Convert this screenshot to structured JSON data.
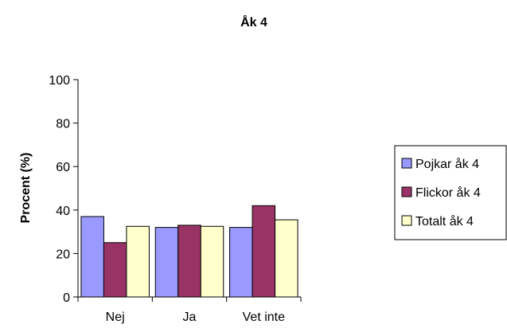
{
  "chart_data": {
    "type": "bar",
    "title": "Åk 4",
    "xlabel": "",
    "ylabel": "Procent (%)",
    "ylim": [
      0,
      100
    ],
    "yticks": [
      0,
      20,
      40,
      60,
      80,
      100
    ],
    "categories": [
      "Nej",
      "Ja",
      "Vet inte"
    ],
    "series": [
      {
        "name": "Pojkar åk 4",
        "values": [
          37,
          32,
          32
        ],
        "color": "#9999ff"
      },
      {
        "name": "Flickor åk 4",
        "values": [
          25,
          33,
          42
        ],
        "color": "#993366"
      },
      {
        "name": "Totalt åk 4",
        "values": [
          32.5,
          32.5,
          35.5
        ],
        "color": "#ffffcc"
      }
    ],
    "grid": false,
    "legend": "right"
  }
}
